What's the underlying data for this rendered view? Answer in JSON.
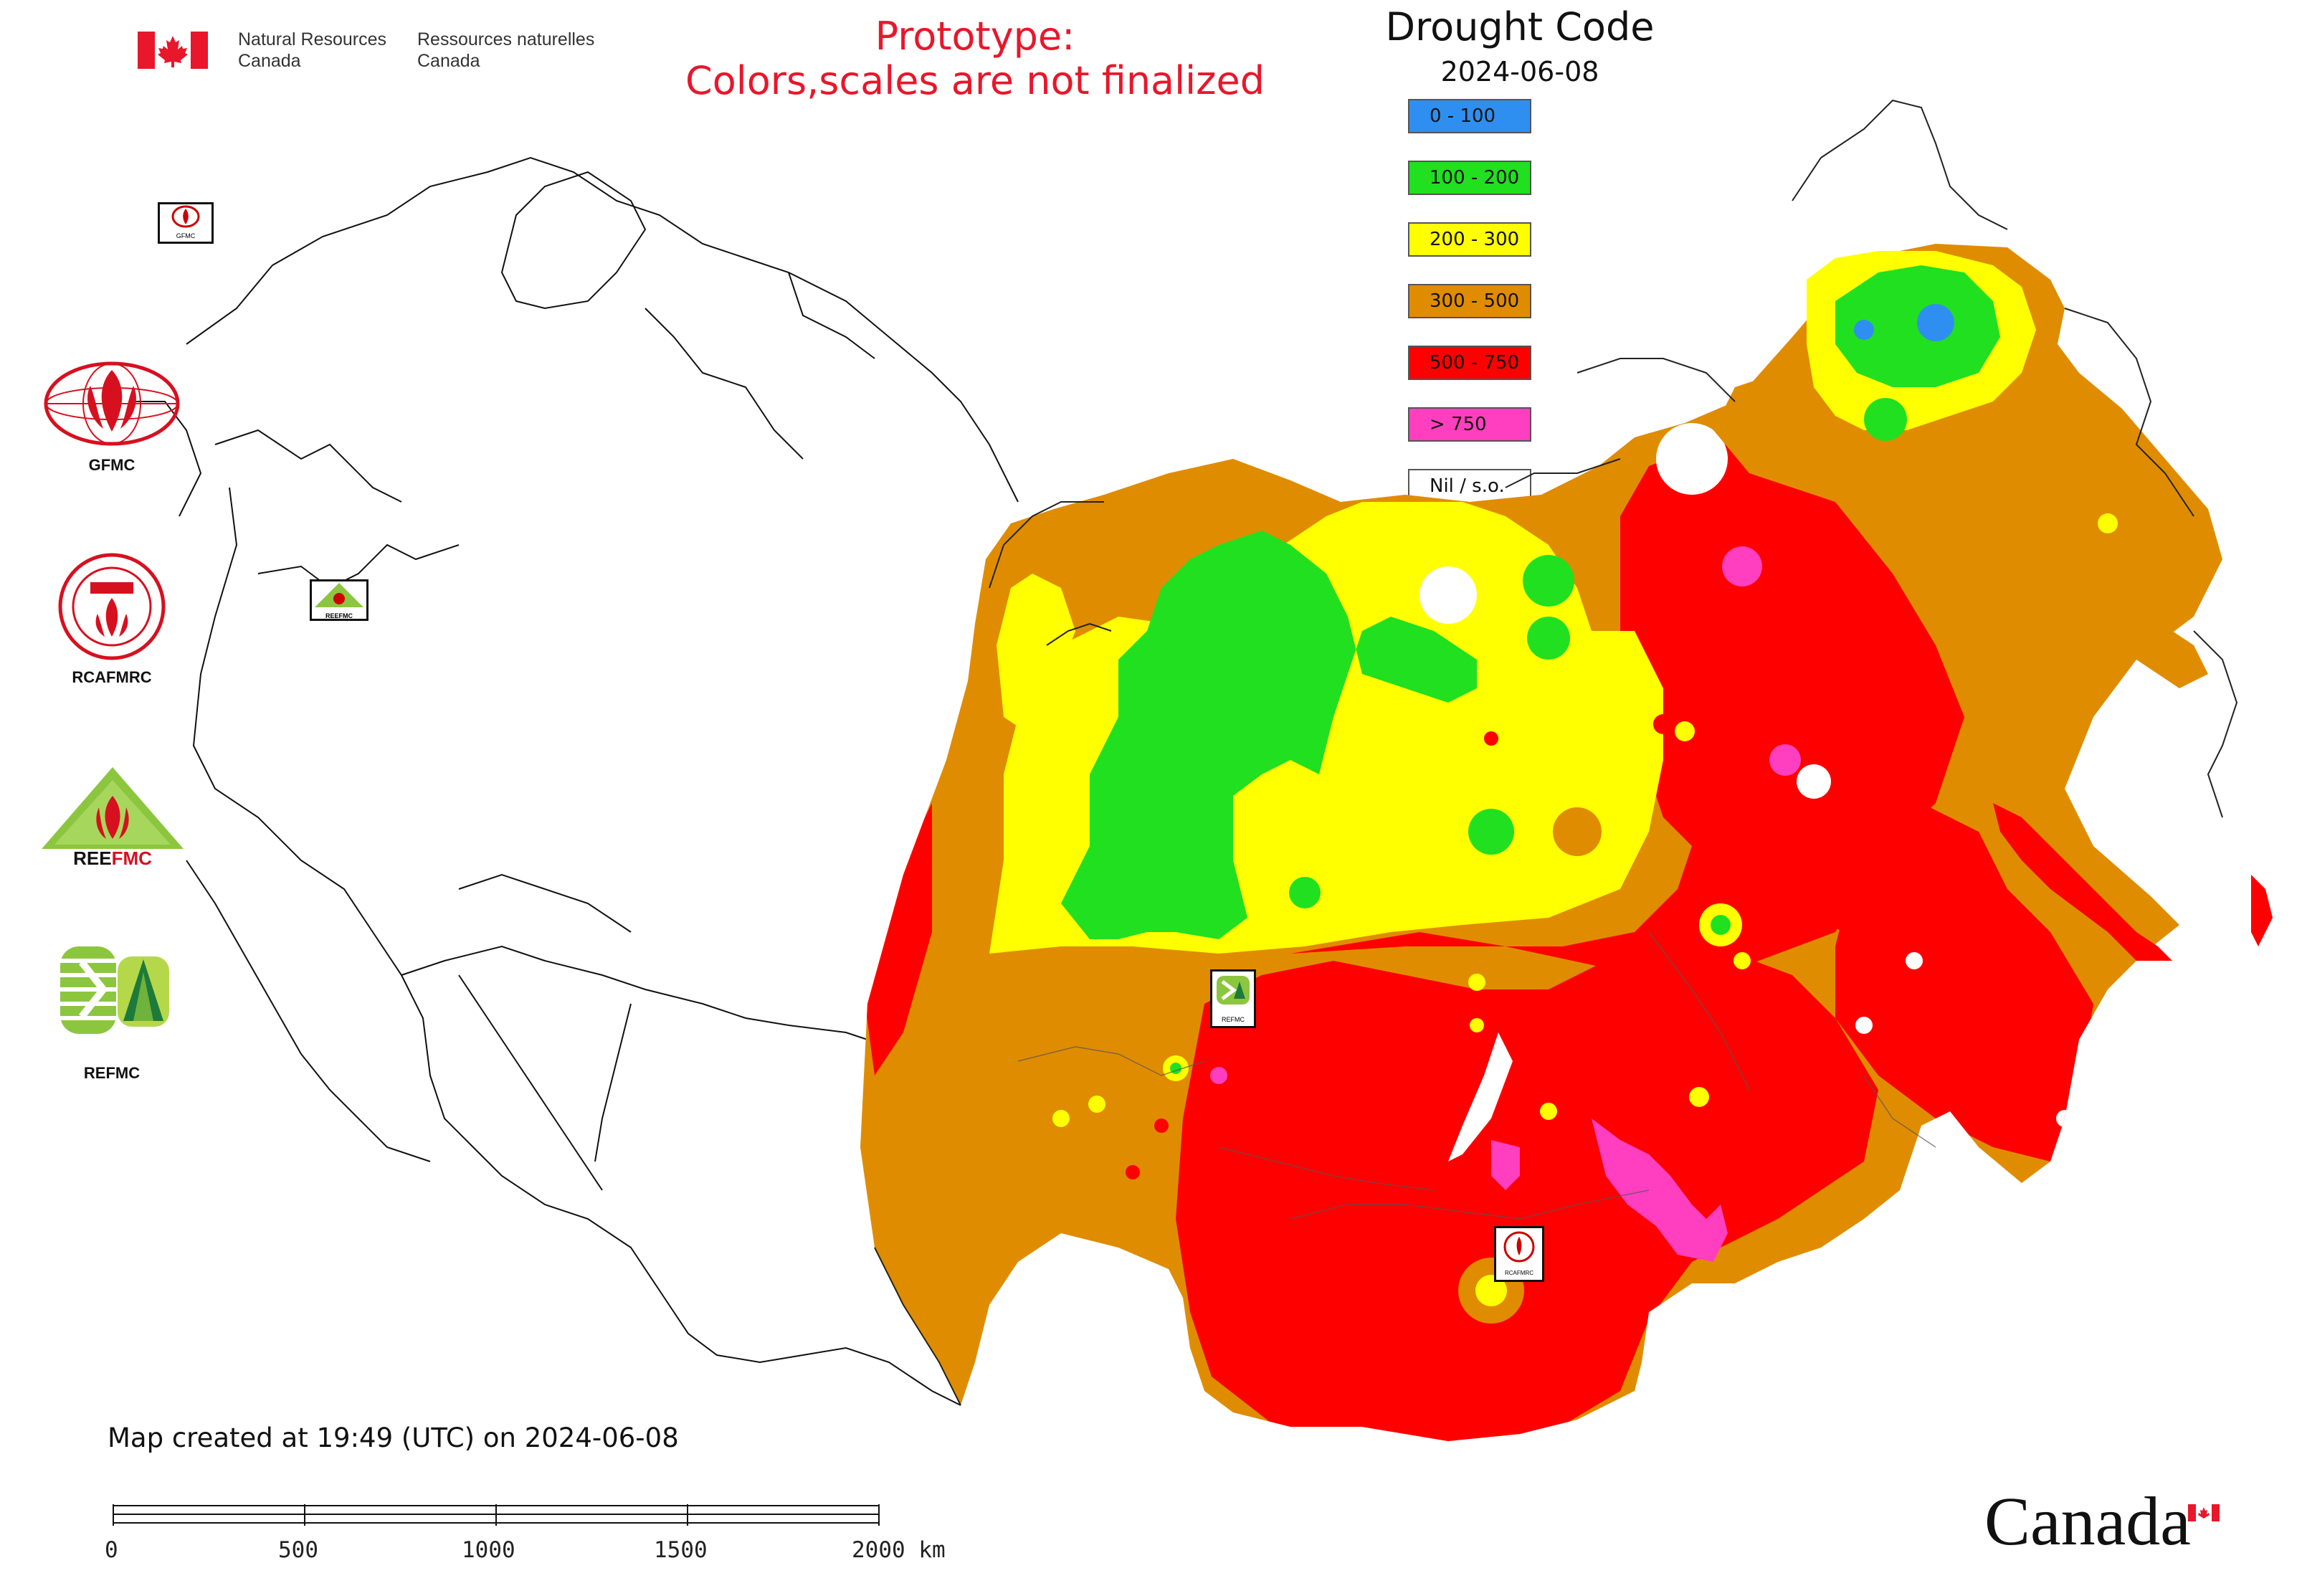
{
  "header": {
    "org_en_line1": "Natural Resources",
    "org_en_line2": "Canada",
    "org_fr_line1": "Ressources naturelles",
    "org_fr_line2": "Canada",
    "flag_icon": "canada-flag-icon"
  },
  "prototype_notice": {
    "line1": "Prototype:",
    "line2": "Colors,scales are not finalized",
    "color": "#e8172b"
  },
  "legend": {
    "title": "Drought Code",
    "date": "2024-06-08",
    "classes": [
      {
        "label": "0 - 100",
        "color": "#2f8ff0"
      },
      {
        "label": "100 - 200",
        "color": "#20e020"
      },
      {
        "label": "200 - 300",
        "color": "#ffff00"
      },
      {
        "label": "300 - 500",
        "color": "#e08c00"
      },
      {
        "label": "500 - 750",
        "color": "#ff0000"
      },
      {
        "label": "> 750",
        "color": "#ff3fbf"
      },
      {
        "label": "Nil / s.o.",
        "color": "#ffffff"
      }
    ]
  },
  "logos": [
    {
      "name": "GFMC",
      "icon": "gfmc-logo-icon"
    },
    {
      "name": "RCAFMRC",
      "icon": "rcafmrc-logo-icon"
    },
    {
      "name": "REEFMC",
      "icon": "reefmc-logo-icon"
    },
    {
      "name": "REFMC",
      "icon": "refmc-logo-icon"
    }
  ],
  "map_markers": [
    {
      "caption": "GFMC"
    },
    {
      "caption": "REEFMC"
    },
    {
      "caption": "REFMC"
    },
    {
      "caption": "RCAFMRC"
    }
  ],
  "footer": {
    "created_text": "Map created at 19:49 (UTC) on 2024-06-08",
    "scale_labels": [
      "0",
      "500",
      "1000",
      "1500",
      "2000 km"
    ],
    "wordmark": "Canada"
  }
}
